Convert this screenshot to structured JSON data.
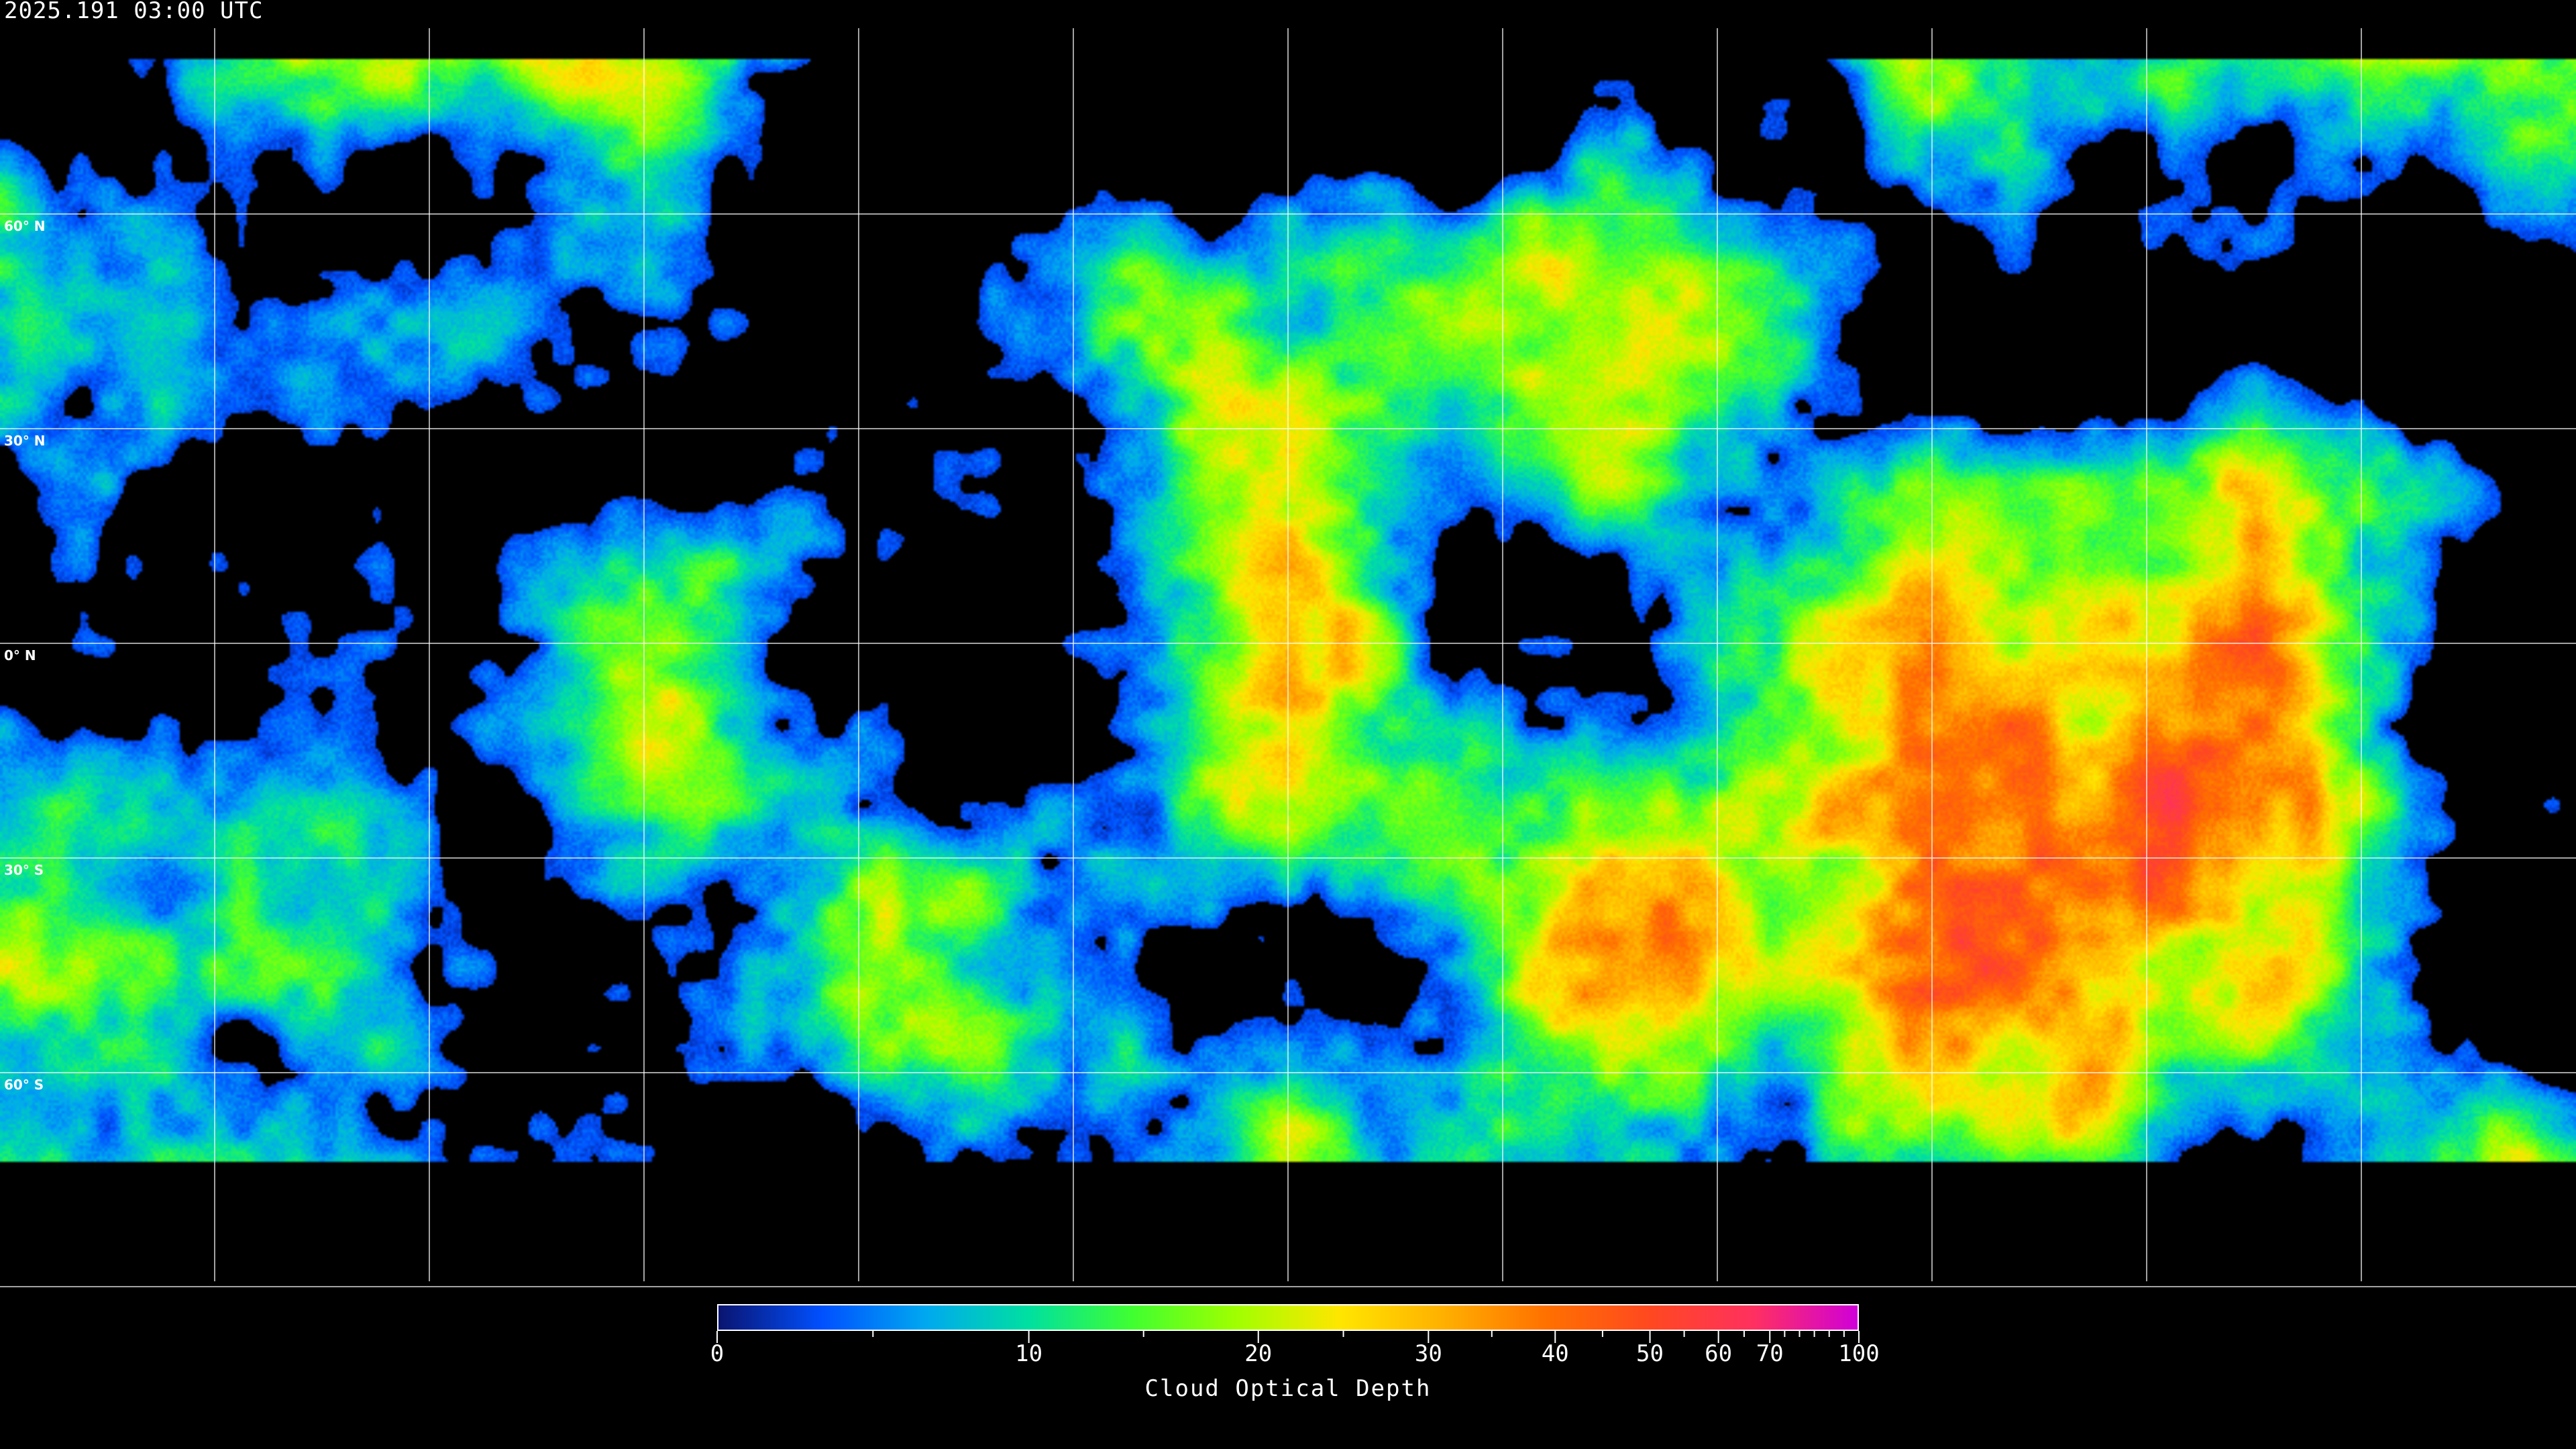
{
  "title": "2025.191 03:00 UTC",
  "map": {
    "projection": "equirectangular",
    "latitude_labels": [
      "60° N",
      "30° N",
      "0° N",
      "30° S",
      "60° S"
    ],
    "graticule_spacing_degrees": 30,
    "background": "#000000",
    "coastline_color": "#ffffff",
    "grid_color": "#ffffff"
  },
  "colorbar": {
    "label": "Cloud Optical Depth",
    "min": 0,
    "max": 100,
    "tick_labels": [
      {
        "value": 0,
        "label": "0"
      },
      {
        "value": 10,
        "label": "10"
      },
      {
        "value": 20,
        "label": "20"
      },
      {
        "value": 30,
        "label": "30"
      },
      {
        "value": 40,
        "label": "40"
      },
      {
        "value": 50,
        "label": "50"
      },
      {
        "value": 60,
        "label": "60"
      },
      {
        "value": 70,
        "label": "70"
      },
      {
        "value": 100,
        "label": "100"
      }
    ],
    "minor_ticks": [
      5,
      15,
      25,
      35,
      45,
      55,
      65,
      75,
      80,
      85,
      90,
      95
    ],
    "colors": [
      "#0a1470",
      "#0050ff",
      "#00a8f0",
      "#00e0a0",
      "#40ff30",
      "#a0ff00",
      "#ffe600",
      "#ffb000",
      "#ff7000",
      "#ff4820",
      "#ff3060",
      "#d000d8"
    ]
  }
}
